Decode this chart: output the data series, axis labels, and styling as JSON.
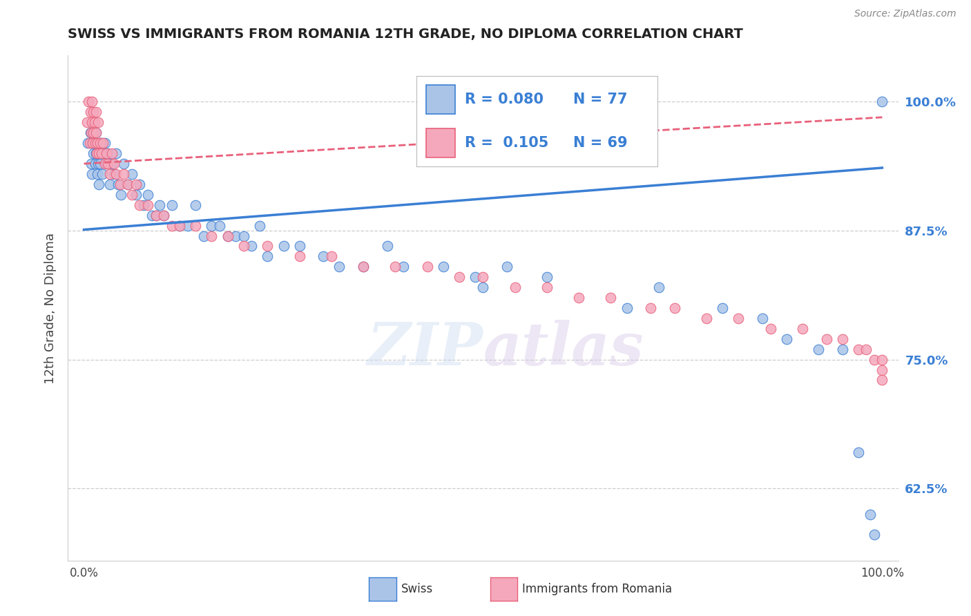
{
  "title": "SWISS VS IMMIGRANTS FROM ROMANIA 12TH GRADE, NO DIPLOMA CORRELATION CHART",
  "source_text": "Source: ZipAtlas.com",
  "ylabel": "12th Grade, No Diploma",
  "ylim": [
    0.555,
    1.045
  ],
  "xlim": [
    -0.02,
    1.02
  ],
  "yticks": [
    0.625,
    0.75,
    0.875,
    1.0
  ],
  "ytick_labels": [
    "62.5%",
    "75.0%",
    "87.5%",
    "100.0%"
  ],
  "r_swiss": 0.08,
  "n_swiss": 77,
  "r_romania": 0.105,
  "n_romania": 69,
  "swiss_color": "#aac4e8",
  "romania_color": "#f5a8bc",
  "swiss_line_color": "#3a7fd4",
  "romania_line_color": "#e8607a",
  "swiss_x": [
    0.005,
    0.008,
    0.009,
    0.01,
    0.01,
    0.011,
    0.012,
    0.013,
    0.014,
    0.015,
    0.015,
    0.016,
    0.017,
    0.018,
    0.019,
    0.02,
    0.02,
    0.021,
    0.022,
    0.023,
    0.025,
    0.026,
    0.028,
    0.03,
    0.032,
    0.035,
    0.038,
    0.04,
    0.043,
    0.046,
    0.05,
    0.055,
    0.06,
    0.065,
    0.07,
    0.075,
    0.08,
    0.085,
    0.09,
    0.095,
    0.1,
    0.11,
    0.12,
    0.13,
    0.14,
    0.15,
    0.16,
    0.17,
    0.18,
    0.19,
    0.2,
    0.21,
    0.22,
    0.23,
    0.25,
    0.27,
    0.3,
    0.32,
    0.35,
    0.38,
    0.4,
    0.45,
    0.49,
    0.5,
    0.53,
    0.58,
    0.68,
    0.72,
    0.8,
    0.85,
    0.88,
    0.92,
    0.95,
    0.97,
    0.985,
    0.99,
    1.0
  ],
  "swiss_y": [
    0.96,
    0.97,
    0.94,
    0.93,
    0.96,
    0.97,
    0.95,
    0.96,
    0.94,
    0.97,
    0.95,
    0.96,
    0.93,
    0.94,
    0.92,
    0.96,
    0.94,
    0.95,
    0.96,
    0.93,
    0.95,
    0.96,
    0.94,
    0.95,
    0.92,
    0.94,
    0.93,
    0.95,
    0.92,
    0.91,
    0.94,
    0.92,
    0.93,
    0.91,
    0.92,
    0.9,
    0.91,
    0.89,
    0.89,
    0.9,
    0.89,
    0.9,
    0.88,
    0.88,
    0.9,
    0.87,
    0.88,
    0.88,
    0.87,
    0.87,
    0.87,
    0.86,
    0.88,
    0.85,
    0.86,
    0.86,
    0.85,
    0.84,
    0.84,
    0.86,
    0.84,
    0.84,
    0.83,
    0.82,
    0.84,
    0.83,
    0.8,
    0.82,
    0.8,
    0.79,
    0.77,
    0.76,
    0.76,
    0.66,
    0.6,
    0.58,
    1.0
  ],
  "romania_x": [
    0.004,
    0.006,
    0.007,
    0.008,
    0.009,
    0.01,
    0.01,
    0.011,
    0.012,
    0.012,
    0.013,
    0.014,
    0.015,
    0.015,
    0.016,
    0.017,
    0.018,
    0.019,
    0.02,
    0.022,
    0.024,
    0.026,
    0.028,
    0.03,
    0.032,
    0.035,
    0.038,
    0.04,
    0.045,
    0.05,
    0.055,
    0.06,
    0.065,
    0.07,
    0.08,
    0.09,
    0.1,
    0.11,
    0.12,
    0.14,
    0.16,
    0.18,
    0.2,
    0.23,
    0.27,
    0.31,
    0.35,
    0.39,
    0.43,
    0.47,
    0.5,
    0.54,
    0.58,
    0.62,
    0.66,
    0.71,
    0.74,
    0.78,
    0.82,
    0.86,
    0.9,
    0.93,
    0.95,
    0.97,
    0.98,
    0.99,
    1.0,
    1.0,
    1.0
  ],
  "romania_y": [
    0.98,
    1.0,
    0.96,
    0.99,
    0.97,
    0.98,
    1.0,
    0.96,
    0.99,
    0.97,
    0.98,
    0.96,
    0.99,
    0.97,
    0.95,
    0.96,
    0.98,
    0.95,
    0.96,
    0.95,
    0.96,
    0.94,
    0.95,
    0.94,
    0.93,
    0.95,
    0.94,
    0.93,
    0.92,
    0.93,
    0.92,
    0.91,
    0.92,
    0.9,
    0.9,
    0.89,
    0.89,
    0.88,
    0.88,
    0.88,
    0.87,
    0.87,
    0.86,
    0.86,
    0.85,
    0.85,
    0.84,
    0.84,
    0.84,
    0.83,
    0.83,
    0.82,
    0.82,
    0.81,
    0.81,
    0.8,
    0.8,
    0.79,
    0.79,
    0.78,
    0.78,
    0.77,
    0.77,
    0.76,
    0.76,
    0.75,
    0.75,
    0.74,
    0.73
  ]
}
